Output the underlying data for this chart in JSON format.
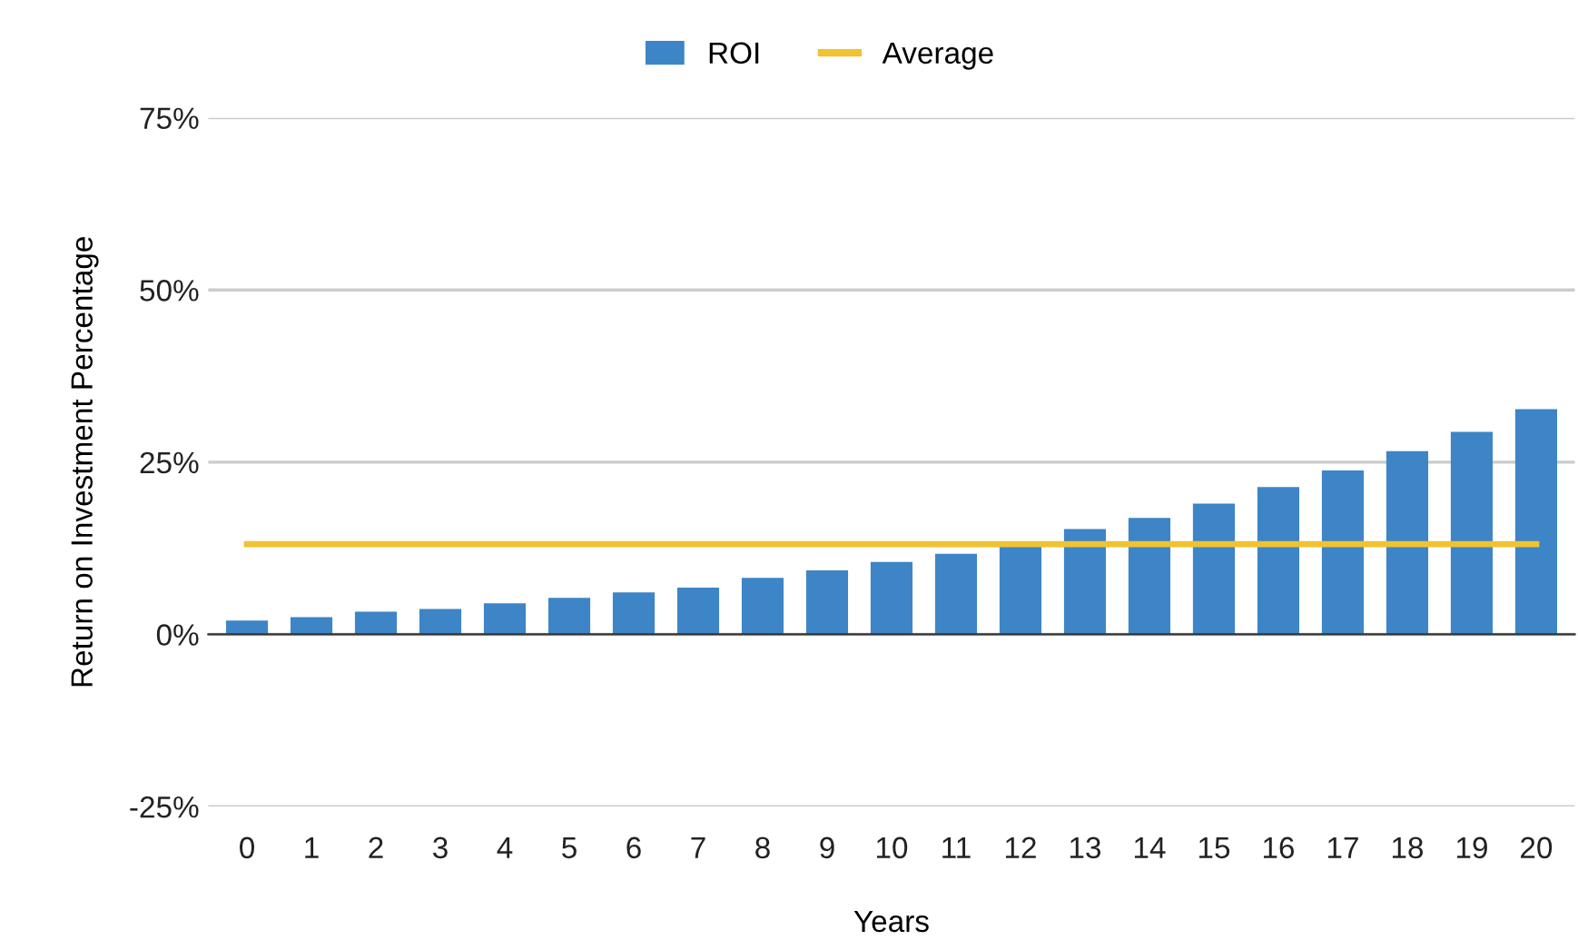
{
  "chart_data": {
    "type": "bar",
    "xlabel": "Years",
    "ylabel": "Return on Investment Percentage",
    "categories": [
      "0",
      "1",
      "2",
      "3",
      "4",
      "5",
      "6",
      "7",
      "8",
      "9",
      "10",
      "11",
      "12",
      "13",
      "14",
      "15",
      "16",
      "17",
      "18",
      "19",
      "20"
    ],
    "series": [
      {
        "name": "ROI",
        "color": "#3d85c6",
        "values": [
          2.0,
          2.5,
          3.3,
          3.7,
          4.5,
          5.3,
          6.1,
          6.8,
          8.2,
          9.3,
          10.5,
          11.7,
          13.2,
          15.3,
          16.9,
          19.0,
          21.4,
          23.8,
          26.6,
          29.4,
          32.7
        ]
      },
      {
        "name": "Average",
        "color": "#f1c232",
        "type": "line",
        "values": [
          13.1,
          13.1,
          13.1,
          13.1,
          13.1,
          13.1,
          13.1,
          13.1,
          13.1,
          13.1,
          13.1,
          13.1,
          13.1,
          13.1,
          13.1,
          13.1,
          13.1,
          13.1,
          13.1,
          13.1,
          13.1
        ]
      }
    ],
    "ylim": [
      -25,
      75
    ],
    "yticks": [
      {
        "value": -25,
        "label": "-25%"
      },
      {
        "value": 0,
        "label": "0%"
      },
      {
        "value": 25,
        "label": "25%"
      },
      {
        "value": 50,
        "label": "50%"
      },
      {
        "value": 75,
        "label": "75%"
      }
    ],
    "grid": "y",
    "legend": "top",
    "marker": "none"
  }
}
